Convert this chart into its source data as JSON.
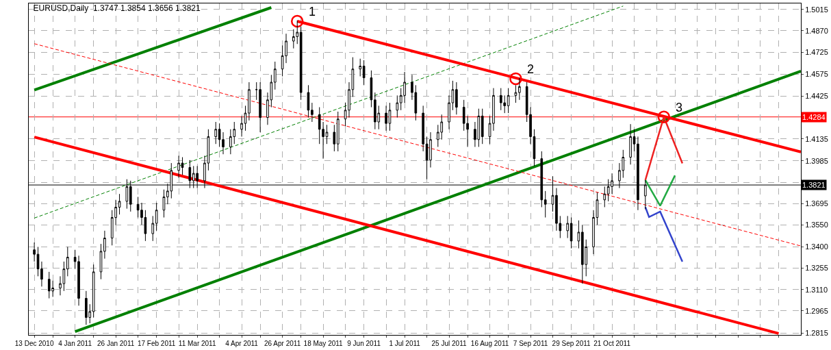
{
  "chart_data": {
    "type": "candlestick",
    "title": "EURUSD,Daily  1.3747 1.3854 1.3656 1.3821",
    "x": [
      "2010-12-13",
      "2010-12-15",
      "2010-12-17",
      "2010-12-21",
      "2010-12-23",
      "2010-12-27",
      "2010-12-29",
      "2010-12-31",
      "2011-01-04",
      "2011-01-06",
      "2011-01-10",
      "2011-01-12",
      "2011-01-14",
      "2011-01-18",
      "2011-01-20",
      "2011-01-24",
      "2011-01-26",
      "2011-01-28",
      "2011-02-01",
      "2011-02-03",
      "2011-02-07",
      "2011-02-09",
      "2011-02-11",
      "2011-02-15",
      "2011-02-17",
      "2011-02-21",
      "2011-02-23",
      "2011-02-25",
      "2011-03-01",
      "2011-03-03",
      "2011-03-07",
      "2011-03-09",
      "2011-03-11",
      "2011-03-15",
      "2011-03-17",
      "2011-03-21",
      "2011-03-23",
      "2011-03-25",
      "2011-03-29",
      "2011-03-31",
      "2011-04-04",
      "2011-04-06",
      "2011-04-08",
      "2011-04-12",
      "2011-04-14",
      "2011-04-18",
      "2011-04-20",
      "2011-04-22",
      "2011-04-26",
      "2011-04-28",
      "2011-05-02",
      "2011-05-04",
      "2011-05-06",
      "2011-05-10",
      "2011-05-12",
      "2011-05-16",
      "2011-05-18",
      "2011-05-20",
      "2011-05-24",
      "2011-05-26",
      "2011-05-30",
      "2011-06-01",
      "2011-06-03",
      "2011-06-07",
      "2011-06-09",
      "2011-06-13",
      "2011-06-15",
      "2011-06-17",
      "2011-06-21",
      "2011-06-23",
      "2011-06-27",
      "2011-06-29",
      "2011-07-01",
      "2011-07-05",
      "2011-07-07",
      "2011-07-11",
      "2011-07-13",
      "2011-07-15",
      "2011-07-19",
      "2011-07-21",
      "2011-07-25",
      "2011-07-27",
      "2011-07-29",
      "2011-08-02",
      "2011-08-04",
      "2011-08-08",
      "2011-08-10",
      "2011-08-12",
      "2011-08-16",
      "2011-08-18",
      "2011-08-22",
      "2011-08-24",
      "2011-08-26",
      "2011-08-30",
      "2011-09-01",
      "2011-09-05",
      "2011-09-07",
      "2011-09-09",
      "2011-09-13",
      "2011-09-15",
      "2011-09-19",
      "2011-09-21",
      "2011-09-23",
      "2011-09-27",
      "2011-09-29",
      "2011-10-03",
      "2011-10-05",
      "2011-10-07",
      "2011-10-11",
      "2011-10-13",
      "2011-10-17",
      "2011-10-19",
      "2011-10-21",
      "2011-10-25",
      "2011-10-27",
      "2011-10-31",
      "2011-11-02",
      "2011-11-04",
      "2011-11-08"
    ],
    "ohlc": [
      [
        1.338,
        1.343,
        1.33,
        1.335
      ],
      [
        1.335,
        1.34,
        1.32,
        1.325
      ],
      [
        1.325,
        1.33,
        1.313,
        1.318
      ],
      [
        1.318,
        1.323,
        1.305,
        1.31
      ],
      [
        1.31,
        1.317,
        1.306,
        1.312
      ],
      [
        1.312,
        1.32,
        1.307,
        1.315
      ],
      [
        1.315,
        1.33,
        1.31,
        1.325
      ],
      [
        1.325,
        1.34,
        1.32,
        1.333
      ],
      [
        1.333,
        1.338,
        1.325,
        1.33
      ],
      [
        1.33,
        1.334,
        1.3,
        1.305
      ],
      [
        1.305,
        1.31,
        1.287,
        1.292
      ],
      [
        1.292,
        1.301,
        1.288,
        1.296
      ],
      [
        1.296,
        1.328,
        1.292,
        1.323
      ],
      [
        1.323,
        1.342,
        1.318,
        1.337
      ],
      [
        1.337,
        1.351,
        1.332,
        1.346
      ],
      [
        1.346,
        1.365,
        1.341,
        1.36
      ],
      [
        1.36,
        1.372,
        1.355,
        1.367
      ],
      [
        1.367,
        1.376,
        1.362,
        1.371
      ],
      [
        1.371,
        1.386,
        1.366,
        1.381
      ],
      [
        1.381,
        1.385,
        1.364,
        1.369
      ],
      [
        1.369,
        1.374,
        1.36,
        1.365
      ],
      [
        1.365,
        1.37,
        1.355,
        1.36
      ],
      [
        1.36,
        1.365,
        1.344,
        1.349
      ],
      [
        1.349,
        1.361,
        1.344,
        1.356
      ],
      [
        1.356,
        1.37,
        1.351,
        1.365
      ],
      [
        1.365,
        1.379,
        1.36,
        1.374
      ],
      [
        1.374,
        1.383,
        1.369,
        1.378
      ],
      [
        1.378,
        1.397,
        1.373,
        1.392
      ],
      [
        1.392,
        1.402,
        1.387,
        1.397
      ],
      [
        1.397,
        1.401,
        1.389,
        1.394
      ],
      [
        1.394,
        1.399,
        1.38,
        1.385
      ],
      [
        1.385,
        1.395,
        1.38,
        1.39
      ],
      [
        1.39,
        1.395,
        1.38,
        1.385
      ],
      [
        1.385,
        1.402,
        1.38,
        1.397
      ],
      [
        1.397,
        1.42,
        1.392,
        1.415
      ],
      [
        1.415,
        1.425,
        1.41,
        1.42
      ],
      [
        1.42,
        1.424,
        1.408,
        1.413
      ],
      [
        1.413,
        1.418,
        1.403,
        1.408
      ],
      [
        1.408,
        1.42,
        1.403,
        1.415
      ],
      [
        1.415,
        1.425,
        1.41,
        1.42
      ],
      [
        1.42,
        1.429,
        1.415,
        1.424
      ],
      [
        1.424,
        1.436,
        1.419,
        1.431
      ],
      [
        1.431,
        1.452,
        1.426,
        1.447
      ],
      [
        1.447,
        1.452,
        1.44,
        1.447
      ],
      [
        1.447,
        1.452,
        1.418,
        1.428
      ],
      [
        1.428,
        1.445,
        1.423,
        1.44
      ],
      [
        1.44,
        1.457,
        1.435,
        1.452
      ],
      [
        1.452,
        1.466,
        1.447,
        1.461
      ],
      [
        1.461,
        1.477,
        1.456,
        1.47
      ],
      [
        1.47,
        1.485,
        1.465,
        1.48
      ],
      [
        1.48,
        1.488,
        1.475,
        1.483
      ],
      [
        1.483,
        1.494,
        1.478,
        1.486
      ],
      [
        1.486,
        1.49,
        1.44,
        1.445
      ],
      [
        1.445,
        1.45,
        1.428,
        1.433
      ],
      [
        1.433,
        1.438,
        1.425,
        1.43
      ],
      [
        1.43,
        1.435,
        1.41,
        1.42
      ],
      [
        1.42,
        1.425,
        1.4,
        1.415
      ],
      [
        1.415,
        1.423,
        1.41,
        1.418
      ],
      [
        1.418,
        1.423,
        1.405,
        1.41
      ],
      [
        1.41,
        1.432,
        1.405,
        1.427
      ],
      [
        1.427,
        1.438,
        1.422,
        1.433
      ],
      [
        1.433,
        1.452,
        1.428,
        1.447
      ],
      [
        1.447,
        1.469,
        1.442,
        1.461
      ],
      [
        1.461,
        1.468,
        1.456,
        1.463
      ],
      [
        1.463,
        1.467,
        1.45,
        1.455
      ],
      [
        1.455,
        1.46,
        1.435,
        1.44
      ],
      [
        1.44,
        1.445,
        1.42,
        1.425
      ],
      [
        1.425,
        1.436,
        1.42,
        1.431
      ],
      [
        1.431,
        1.436,
        1.419,
        1.424
      ],
      [
        1.424,
        1.438,
        1.419,
        1.433
      ],
      [
        1.433,
        1.443,
        1.428,
        1.438
      ],
      [
        1.438,
        1.448,
        1.433,
        1.443
      ],
      [
        1.443,
        1.459,
        1.438,
        1.452
      ],
      [
        1.452,
        1.457,
        1.44,
        1.445
      ],
      [
        1.445,
        1.45,
        1.426,
        1.431
      ],
      [
        1.431,
        1.436,
        1.405,
        1.41
      ],
      [
        1.41,
        1.415,
        1.386,
        1.399
      ],
      [
        1.399,
        1.418,
        1.394,
        1.413
      ],
      [
        1.413,
        1.423,
        1.408,
        1.418
      ],
      [
        1.418,
        1.43,
        1.413,
        1.425
      ],
      [
        1.425,
        1.443,
        1.42,
        1.438
      ],
      [
        1.438,
        1.453,
        1.433,
        1.447
      ],
      [
        1.447,
        1.452,
        1.43,
        1.435
      ],
      [
        1.435,
        1.44,
        1.419,
        1.424
      ],
      [
        1.424,
        1.429,
        1.408,
        1.42
      ],
      [
        1.42,
        1.425,
        1.408,
        1.413
      ],
      [
        1.413,
        1.434,
        1.408,
        1.429
      ],
      [
        1.429,
        1.434,
        1.41,
        1.415
      ],
      [
        1.415,
        1.429,
        1.41,
        1.424
      ],
      [
        1.424,
        1.448,
        1.419,
        1.443
      ],
      [
        1.443,
        1.448,
        1.433,
        1.438
      ],
      [
        1.438,
        1.443,
        1.431,
        1.436
      ],
      [
        1.436,
        1.448,
        1.431,
        1.443
      ],
      [
        1.443,
        1.45,
        1.438,
        1.445
      ],
      [
        1.445,
        1.455,
        1.44,
        1.449
      ],
      [
        1.449,
        1.452,
        1.425,
        1.43
      ],
      [
        1.43,
        1.435,
        1.41,
        1.415
      ],
      [
        1.415,
        1.42,
        1.395,
        1.4
      ],
      [
        1.4,
        1.405,
        1.367,
        1.372
      ],
      [
        1.372,
        1.378,
        1.36,
        1.369
      ],
      [
        1.369,
        1.388,
        1.364,
        1.375
      ],
      [
        1.375,
        1.38,
        1.351,
        1.356
      ],
      [
        1.356,
        1.361,
        1.346,
        1.351
      ],
      [
        1.351,
        1.361,
        1.346,
        1.356
      ],
      [
        1.356,
        1.36,
        1.339,
        1.344
      ],
      [
        1.344,
        1.358,
        1.339,
        1.35
      ],
      [
        1.35,
        1.355,
        1.315,
        1.328
      ],
      [
        1.328,
        1.345,
        1.32,
        1.34
      ],
      [
        1.34,
        1.365,
        1.335,
        1.36
      ],
      [
        1.36,
        1.377,
        1.355,
        1.372
      ],
      [
        1.372,
        1.381,
        1.367,
        1.376
      ],
      [
        1.376,
        1.386,
        1.371,
        1.381
      ],
      [
        1.381,
        1.39,
        1.376,
        1.385
      ],
      [
        1.385,
        1.397,
        1.38,
        1.392
      ],
      [
        1.392,
        1.406,
        1.387,
        1.401
      ],
      [
        1.401,
        1.4235,
        1.396,
        1.415
      ],
      [
        1.415,
        1.42,
        1.405,
        1.41
      ],
      [
        1.41,
        1.415,
        1.365,
        1.372
      ],
      [
        1.3747,
        1.3854,
        1.3656,
        1.3821
      ]
    ],
    "series": [
      {
        "type": "line",
        "color": "#008000",
        "line_style": "solid",
        "x": [
          "2010-12-13",
          "2011-04-20"
        ],
        "values": [
          1.4467,
          1.5028
        ]
      },
      {
        "type": "line",
        "color": "#008000",
        "line_style": "solid",
        "x": [
          "2011-01-04",
          "2012-01-31"
        ],
        "values": [
          1.2824,
          1.4595
        ]
      },
      {
        "type": "line",
        "color": "#008000",
        "line_style": "dashed",
        "x": [
          "2010-12-13",
          "2011-10-27"
        ],
        "values": [
          1.3596,
          1.5038
        ]
      },
      {
        "type": "line",
        "color": "#ff0000",
        "line_style": "solid",
        "x": [
          "2011-05-04",
          "2012-01-31"
        ],
        "values": [
          1.4935,
          1.4046
        ]
      },
      {
        "type": "line",
        "color": "#ff0000",
        "line_style": "solid",
        "x": [
          "2010-12-13",
          "2012-01-19"
        ],
        "values": [
          1.4147,
          1.2811
        ]
      },
      {
        "type": "line",
        "color": "#ff0000",
        "line_style": "dashed",
        "x": [
          "2010-12-13",
          "2012-01-31"
        ],
        "values": [
          1.4782,
          1.3406
        ]
      },
      {
        "type": "line",
        "color": "#ee2222",
        "line_style": "solid",
        "x": [
          "2011-11-08",
          "2011-11-18",
          "2011-11-28"
        ],
        "values": [
          1.3854,
          1.4284,
          1.3968
        ]
      },
      {
        "type": "line",
        "color": "#22aa44",
        "line_style": "solid",
        "x": [
          "2011-11-08",
          "2011-11-16",
          "2011-11-24"
        ],
        "values": [
          1.3854,
          1.368,
          1.3886
        ]
      },
      {
        "type": "line",
        "color": "#3344cc",
        "line_style": "solid",
        "x": [
          "2011-11-08",
          "2011-11-10",
          "2011-11-16",
          "2011-11-28"
        ],
        "values": [
          1.3671,
          1.3603,
          1.364,
          1.33
        ]
      },
      {
        "type": "scatter",
        "color": "#ff0000",
        "marker": "circle",
        "x": [
          "2011-05-04",
          "2011-08-30",
          "2011-11-18"
        ],
        "values": [
          1.4935,
          1.4544,
          1.4284
        ]
      }
    ],
    "annotations": [
      {
        "text": "1",
        "x": "2011-05-04",
        "y": 1.4935
      },
      {
        "text": "2",
        "x": "2011-08-30",
        "y": 1.4544
      },
      {
        "text": "3",
        "x": "2011-11-18",
        "y": 1.4284
      }
    ],
    "ref_lines": [
      {
        "axis": "y",
        "value": 1.4284,
        "label": "1.4284",
        "color": "#ff0000"
      },
      {
        "axis": "y",
        "value": 1.3821,
        "label": "1.3821",
        "color": "#000000"
      }
    ],
    "xlim": [
      "2010-12-10",
      "2012-01-31"
    ],
    "xticks": [
      {
        "value": "2010-12-13",
        "label": "13 Dec 2010"
      },
      {
        "value": "2010-12-23",
        "label": null
      },
      {
        "value": "2011-01-04",
        "label": "4 Jan 2011"
      },
      {
        "value": "2011-01-14",
        "label": null
      },
      {
        "value": "2011-01-26",
        "label": "26 Jan 2011"
      },
      {
        "value": "2011-02-07",
        "label": null
      },
      {
        "value": "2011-02-17",
        "label": "17 Feb 2011"
      },
      {
        "value": "2011-03-01",
        "label": null
      },
      {
        "value": "2011-03-11",
        "label": "11 Mar 2011"
      },
      {
        "value": "2011-03-23",
        "label": null
      },
      {
        "value": "2011-04-04",
        "label": "4 Apr 2011"
      },
      {
        "value": "2011-04-14",
        "label": null
      },
      {
        "value": "2011-04-26",
        "label": "26 Apr 2011"
      },
      {
        "value": "2011-05-06",
        "label": null
      },
      {
        "value": "2011-05-18",
        "label": "18 May 2011"
      },
      {
        "value": "2011-05-30",
        "label": null
      },
      {
        "value": "2011-06-09",
        "label": "9 Jun 2011"
      },
      {
        "value": "2011-06-21",
        "label": null
      },
      {
        "value": "2011-07-01",
        "label": "1 Jul 2011"
      },
      {
        "value": "2011-07-13",
        "label": null
      },
      {
        "value": "2011-07-25",
        "label": "25 Jul 2011"
      },
      {
        "value": "2011-08-04",
        "label": null
      },
      {
        "value": "2011-08-16",
        "label": "16 Aug 2011"
      },
      {
        "value": "2011-08-26",
        "label": null
      },
      {
        "value": "2011-09-07",
        "label": "7 Sep 2011"
      },
      {
        "value": "2011-09-19",
        "label": null
      },
      {
        "value": "2011-09-29",
        "label": "29 Sep 2011"
      },
      {
        "value": "2011-10-11",
        "label": null
      },
      {
        "value": "2011-10-21",
        "label": "21 Oct 2011"
      },
      {
        "value": "2011-11-02",
        "label": null
      },
      {
        "value": "2011-11-14",
        "label": null
      },
      {
        "value": "2011-11-24",
        "label": null
      },
      {
        "value": "2011-12-06",
        "label": null
      },
      {
        "value": "2011-12-16",
        "label": null
      },
      {
        "value": "2011-12-28",
        "label": null
      },
      {
        "value": "2012-01-09",
        "label": null
      },
      {
        "value": "2012-01-19",
        "label": null
      }
    ],
    "ylim": [
      1.2801,
      1.5056
    ],
    "yticks": [
      1.2815,
      1.2965,
      {
        "value": 1.311,
        "label": "1.3110"
      },
      1.3255,
      {
        "value": 1.34,
        "label": "1.3400"
      },
      {
        "value": 1.355,
        "label": "1.3550"
      },
      1.3695,
      {
        "value": 1.384,
        "label": null
      },
      1.3985,
      1.4135,
      1.4425,
      1.4575,
      1.4725,
      {
        "value": 1.487,
        "label": "1.4870"
      },
      1.5015
    ],
    "grid": true
  }
}
